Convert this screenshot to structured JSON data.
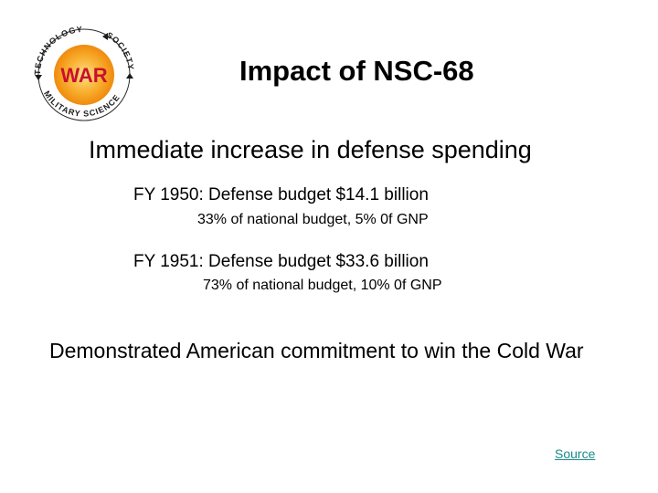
{
  "slide": {
    "logo": {
      "center_text": "WAR",
      "ring_text_top": "TECHNOLOGY",
      "ring_text_right": "SOCIETY",
      "ring_text_bottom": "MILITARY SCIENCE",
      "colors": {
        "sun": "#f6a21c",
        "sun_center": "#fde08a",
        "war_text": "#c8102e",
        "ring_text": "#1a1a1a"
      }
    },
    "title": "Impact of NSC-68",
    "heading": "Immediate increase in defense spending",
    "fy1950": "FY 1950: Defense budget $14.1 billion",
    "fy1950_detail": "33% of national budget,  5% 0f GNP",
    "fy1951": "FY 1951: Defense budget $33.6 billion",
    "fy1951_detail": "73% of national budget,  10% 0f GNP",
    "conclusion": "Demonstrated American commitment to win the Cold War",
    "source_link": "Source"
  }
}
